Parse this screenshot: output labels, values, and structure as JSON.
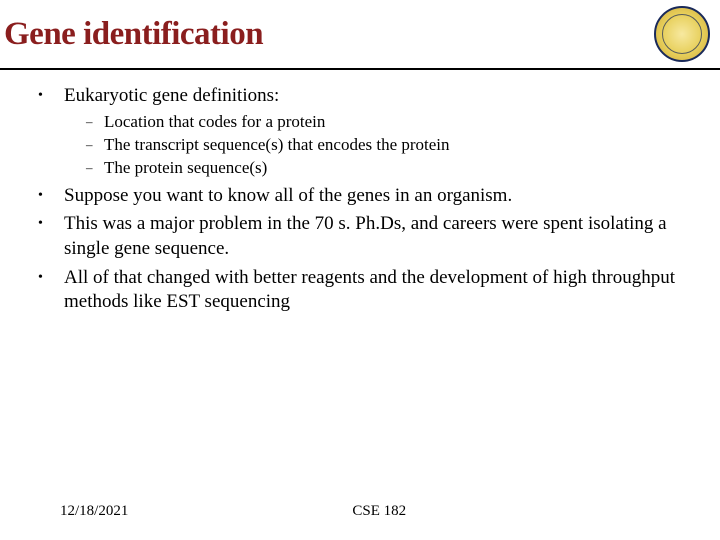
{
  "colors": {
    "title": "#8a1e1e",
    "text": "#000000",
    "rule": "#000000",
    "seal_border": "#1a2a5a",
    "seal_fill_inner": "#f7e9a0",
    "seal_fill_mid": "#e7cf5a",
    "seal_fill_outer": "#cfa83a",
    "background": "#ffffff"
  },
  "typography": {
    "title_fontsize": 33,
    "title_weight": 600,
    "body_fontsize": 19,
    "sub_fontsize": 17,
    "footer_fontsize": 15,
    "font_family": "Georgia, Times New Roman, serif"
  },
  "title": "Gene identification",
  "bullets": [
    {
      "text": "Eukaryotic gene definitions:",
      "sub": [
        "Location that codes for a protein",
        "The transcript sequence(s) that encodes the protein",
        "The protein sequence(s)"
      ]
    },
    {
      "text": "Suppose you want to know all of the genes in an organism."
    },
    {
      "text": "This was a major problem in the 70 s. Ph.Ds, and careers were spent isolating a single gene sequence."
    },
    {
      "text": "All of that changed with better reagents and the development of high throughput methods like EST sequencing"
    }
  ],
  "footer": {
    "date": "12/18/2021",
    "course": "CSE 182"
  }
}
